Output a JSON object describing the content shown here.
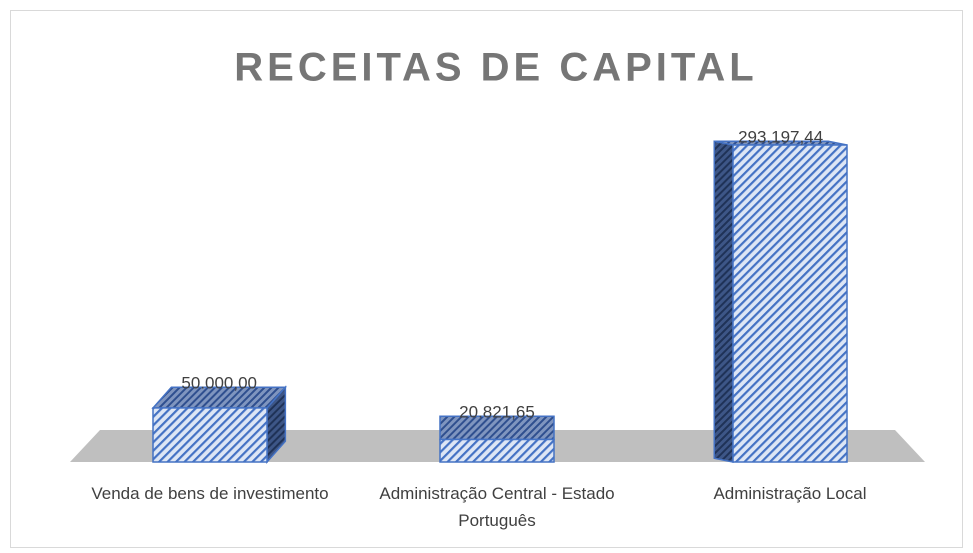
{
  "chart_data": {
    "type": "bar3d",
    "title": "RECEITAS DE CAPITAL",
    "categories": [
      "Venda de bens de investimento",
      "Administração Central - Estado Português",
      "Administração Local"
    ],
    "values": [
      50000,
      20821.65,
      293197.44
    ],
    "value_labels": [
      "50.000,00",
      "20.821,65",
      "293.197,44"
    ],
    "color": "#4472c4"
  }
}
